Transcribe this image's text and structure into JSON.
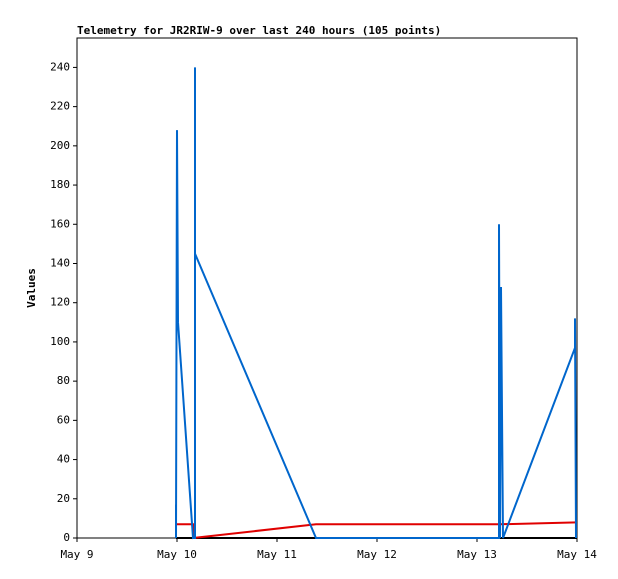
{
  "chart_data": {
    "type": "line",
    "title": "Telemetry for JR2RIW-9 over last 240 hours (105 points)",
    "y_label": "Values",
    "xlim": [
      9,
      14
    ],
    "xticks": [
      {
        "value": 9,
        "label": "May 9"
      },
      {
        "value": 10,
        "label": "May 10"
      },
      {
        "value": 11,
        "label": "May 11"
      },
      {
        "value": 12,
        "label": "May 12"
      },
      {
        "value": 13,
        "label": "May 13"
      },
      {
        "value": 14,
        "label": "May 14"
      }
    ],
    "ylim": [
      0,
      255
    ],
    "yticks": [
      0,
      20,
      40,
      60,
      80,
      100,
      120,
      140,
      160,
      180,
      200,
      220,
      240
    ],
    "grid": false,
    "series": [
      {
        "color": "#000000",
        "x": [
          9.99,
          14.0
        ],
        "values": [
          0,
          0
        ]
      },
      {
        "color": "#e00000",
        "x": [
          9.99,
          10.16,
          10.16,
          11.39,
          13.23,
          14.0
        ],
        "values": [
          7,
          7,
          0,
          7,
          7,
          8
        ]
      },
      {
        "color": "#0066cc",
        "x": [
          9.99,
          9.99,
          9.99,
          10.0,
          10.01,
          10.16,
          10.18,
          10.18,
          10.18,
          11.39,
          13.22,
          13.22,
          13.23,
          13.24,
          13.26,
          13.98,
          13.98,
          13.99
        ],
        "values": [
          0,
          17,
          0,
          208,
          110,
          0,
          0,
          240,
          145,
          0,
          0,
          160,
          0,
          128,
          0,
          97,
          112,
          0
        ]
      }
    ]
  }
}
